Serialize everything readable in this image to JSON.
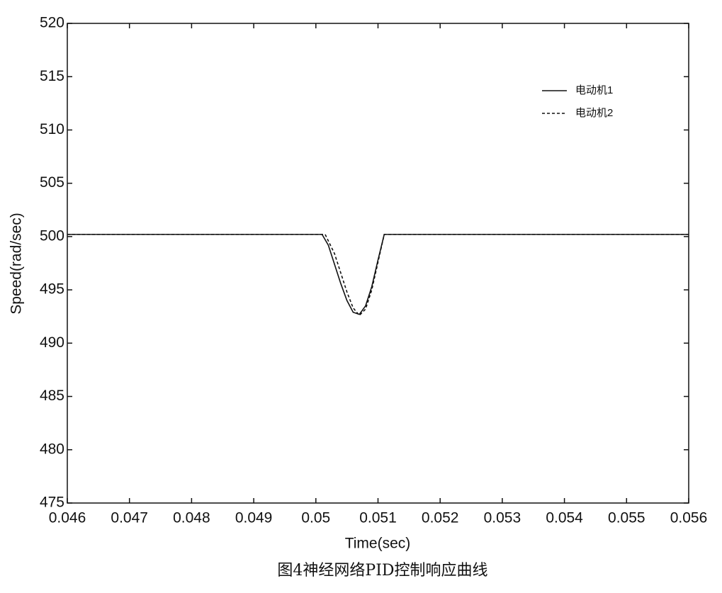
{
  "chart_data": {
    "type": "line",
    "xlabel": "Time(sec)",
    "ylabel": "Speed(rad/sec)",
    "caption": "图4神经网络PID控制响应曲线",
    "xlim": [
      0.046,
      0.056
    ],
    "xticks": [
      0.046,
      0.047,
      0.048,
      0.049,
      0.05,
      0.051,
      0.052,
      0.053,
      0.054,
      0.055,
      0.056
    ],
    "ylim": [
      475,
      520
    ],
    "yticks": [
      475,
      480,
      485,
      490,
      495,
      500,
      505,
      510,
      515,
      520
    ],
    "legend": "upper right",
    "series": [
      {
        "name": "电动机1",
        "color": "#111111",
        "style": "solid",
        "x": [
          0.046,
          0.0501,
          0.0502,
          0.0503,
          0.0504,
          0.0505,
          0.0506,
          0.0507,
          0.0508,
          0.0509,
          0.051,
          0.0511,
          0.056
        ],
        "values": [
          500.2,
          500.2,
          499.2,
          497.4,
          495.6,
          494.0,
          492.9,
          492.7,
          493.5,
          495.3,
          497.8,
          500.2,
          500.2
        ]
      },
      {
        "name": "电动机2",
        "color": "#111111",
        "style": "dashed",
        "x": [
          0.046,
          0.05015,
          0.0503,
          0.0504,
          0.0505,
          0.0506,
          0.0507,
          0.0508,
          0.0509,
          0.051,
          0.0511,
          0.056
        ],
        "values": [
          500.2,
          500.2,
          498.4,
          496.6,
          494.8,
          493.3,
          492.6,
          493.2,
          495.0,
          497.6,
          500.2,
          500.2
        ]
      }
    ]
  }
}
